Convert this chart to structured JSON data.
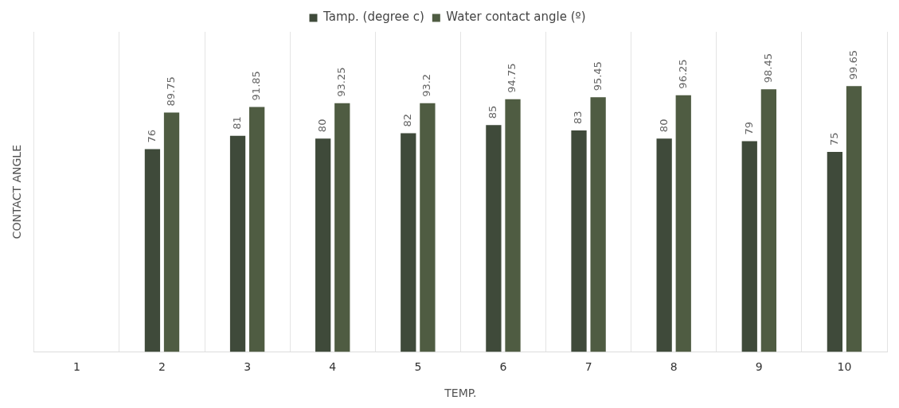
{
  "chart_data": {
    "type": "bar",
    "xlabel": "TEMP.",
    "ylabel": "CONTACT ANGLE",
    "categories": [
      "1",
      "2",
      "3",
      "4",
      "5",
      "6",
      "7",
      "8",
      "9",
      "10"
    ],
    "series": [
      {
        "name": "Tamp. (degree c)",
        "color": "#3f4a3a",
        "values": [
          null,
          76,
          81,
          80,
          82,
          85,
          83,
          80,
          79,
          75
        ]
      },
      {
        "name": "Water contact angle (º)",
        "color": "#4f5c42",
        "values": [
          null,
          89.75,
          91.85,
          93.25,
          93.2,
          94.75,
          95.45,
          96.25,
          98.45,
          99.65
        ]
      }
    ],
    "data_labels": true,
    "grid": "x",
    "legend": "top"
  }
}
